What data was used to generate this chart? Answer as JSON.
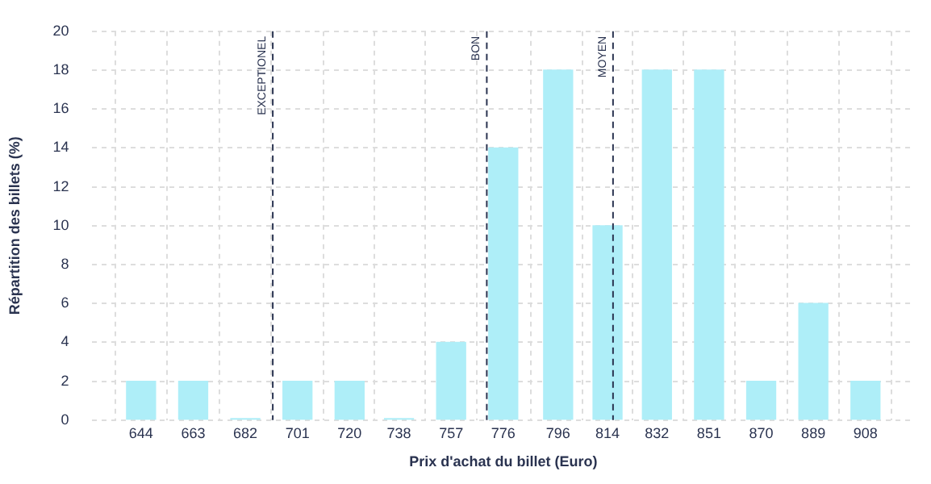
{
  "chart_data": {
    "type": "bar",
    "xlabel": "Prix d'achat du billet (Euro)",
    "ylabel": "Répartition des billets (%)",
    "x": [
      644,
      663,
      682,
      701,
      720,
      738,
      757,
      776,
      796,
      814,
      832,
      851,
      870,
      889,
      908
    ],
    "values": [
      2,
      2,
      0,
      2,
      2,
      0,
      4,
      14,
      18,
      10,
      18,
      18,
      2,
      6,
      2
    ],
    "color": "#aeeef8",
    "xlim": [
      626,
      926
    ],
    "xticks": [
      644,
      663,
      682,
      701,
      720,
      738,
      757,
      776,
      796,
      814,
      832,
      851,
      870,
      889,
      908
    ],
    "ylim": [
      0,
      20
    ],
    "yticks": [
      0,
      2,
      4,
      6,
      8,
      10,
      12,
      14,
      16,
      18,
      20
    ],
    "grid": true,
    "ref_lines": [
      {
        "axis": "x",
        "value": 692,
        "label": "EXCEPTIONEL",
        "color": "#2a3350",
        "line_style": "dashed"
      },
      {
        "axis": "x",
        "value": 770,
        "label": "BON",
        "color": "#2a3350",
        "line_style": "dashed"
      },
      {
        "axis": "x",
        "value": 816,
        "label": "MOYEN",
        "color": "#2a3350",
        "line_style": "dashed"
      }
    ]
  }
}
